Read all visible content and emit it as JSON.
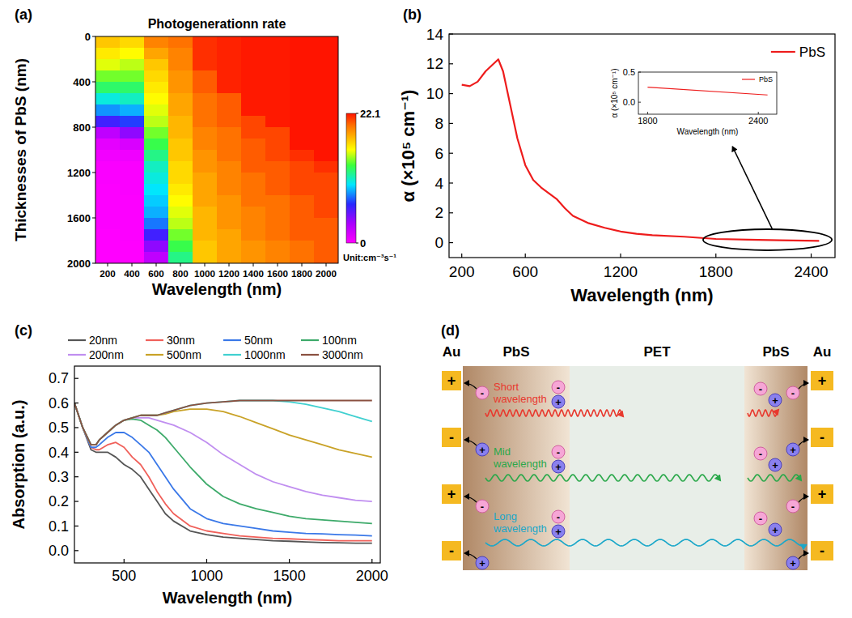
{
  "panel_labels": [
    "(a)",
    "(b)",
    "(c)",
    "(d)"
  ],
  "chart_data": [
    {
      "type": "heatmap",
      "title": "Photogenerationn rate",
      "x_label": "Wavelength (nm)",
      "y_label": "Thicknesses of  PbS (nm)",
      "x": [
        200,
        400,
        600,
        800,
        1000,
        1200,
        1400,
        1600,
        1800,
        2000
      ],
      "y": [
        50,
        150,
        250,
        350,
        450,
        550,
        650,
        750,
        850,
        950,
        1050,
        1150,
        1250,
        1350,
        1450,
        1550,
        1650,
        1750,
        1850,
        1950
      ],
      "xlim": [
        100,
        2100
      ],
      "ylim": [
        2000,
        0
      ],
      "xticks": [
        200,
        400,
        600,
        800,
        1000,
        1200,
        1400,
        1600,
        1800,
        2000
      ],
      "yticks": [
        0,
        400,
        800,
        1200,
        1600,
        2000
      ],
      "cells": [
        [
          17.5,
          17,
          19.5,
          20,
          21.5,
          21.8,
          22,
          22,
          22.1,
          22.1
        ],
        [
          16.5,
          16,
          18.5,
          19.5,
          21.5,
          21.8,
          22,
          22,
          22.1,
          22.1
        ],
        [
          15.5,
          15,
          17.5,
          19.5,
          21.5,
          21.8,
          22,
          22,
          22.1,
          22.1
        ],
        [
          14,
          14,
          17,
          19,
          20.5,
          21.8,
          22,
          22,
          22.1,
          22.1
        ],
        [
          12.5,
          12.5,
          16.5,
          19,
          20.5,
          21.8,
          22,
          22,
          22.1,
          22.1
        ],
        [
          10.5,
          11,
          16,
          18.5,
          20,
          20.5,
          22,
          22,
          22.1,
          22.1
        ],
        [
          8.5,
          9,
          15.5,
          18.5,
          20,
          20.5,
          22,
          22,
          22.1,
          22.1
        ],
        [
          6,
          7,
          15,
          18,
          20,
          20.5,
          21,
          22,
          22.1,
          22.1
        ],
        [
          2.5,
          4,
          14,
          18,
          19.5,
          20,
          21,
          21,
          22.1,
          22.1
        ],
        [
          1,
          1.5,
          13,
          17.5,
          19.5,
          20,
          20.5,
          21,
          22.1,
          22.1
        ],
        [
          0.5,
          0.6,
          12,
          17.5,
          19,
          20,
          20.5,
          21,
          21.5,
          22.1
        ],
        [
          0.2,
          0.2,
          11,
          17,
          19,
          19.5,
          20.5,
          20.5,
          21,
          21.5
        ],
        [
          0.2,
          0.2,
          10.5,
          17,
          18.5,
          19.5,
          20,
          20.5,
          21,
          21
        ],
        [
          0.1,
          0.2,
          10,
          16.5,
          18.5,
          19.5,
          20,
          20.5,
          21,
          21
        ],
        [
          0.1,
          0.1,
          9.5,
          16,
          18.5,
          19,
          20,
          20,
          20.5,
          21
        ],
        [
          0.1,
          0.1,
          9,
          15.5,
          18,
          19,
          19.5,
          20,
          20.5,
          21
        ],
        [
          0.1,
          0.1,
          8,
          15,
          18,
          19,
          19.5,
          20,
          20.5,
          20.5
        ],
        [
          0,
          0.1,
          6,
          14,
          18,
          18.5,
          19.5,
          20,
          20.5,
          20.5
        ],
        [
          0,
          0,
          4,
          13,
          17.5,
          18.5,
          19,
          19.5,
          20,
          20.5
        ],
        [
          0,
          0,
          2.5,
          12,
          17.5,
          18.5,
          19,
          19.5,
          20,
          20.5
        ]
      ],
      "colorbar": {
        "range": [
          0,
          22.1
        ],
        "ticks": [
          0,
          22.1
        ],
        "label": "Unit:cm⁻³s⁻¹"
      }
    },
    {
      "type": "line",
      "x_label": "Wavelength (nm)",
      "y_label": "α (×10⁵ cm⁻¹)",
      "xlim": [
        120,
        2550
      ],
      "ylim": [
        -1,
        14
      ],
      "xticks": [
        200,
        600,
        1200,
        1800,
        2400
      ],
      "yticks": [
        0,
        2,
        4,
        6,
        8,
        10,
        12,
        14
      ],
      "grid": false,
      "legend": "top-right",
      "x": [
        200,
        250,
        300,
        350,
        400,
        430,
        460,
        500,
        550,
        600,
        650,
        700,
        750,
        800,
        850,
        900,
        1000,
        1100,
        1200,
        1300,
        1400,
        1600,
        1800,
        2000,
        2200,
        2450
      ],
      "series": [
        {
          "name": "PbS",
          "color": "#ee1c1c",
          "values": [
            10.6,
            10.5,
            10.8,
            11.5,
            12.0,
            12.3,
            11.5,
            9.5,
            7,
            5.2,
            4.2,
            3.7,
            3.3,
            2.9,
            2.3,
            1.8,
            1.3,
            1.0,
            0.75,
            0.6,
            0.5,
            0.4,
            0.25,
            0.2,
            0.16,
            0.12
          ]
        }
      ],
      "inset": {
        "type": "line",
        "x_label": "Wavelength (nm)",
        "y_label": "α (×10⁵ cm⁻¹)",
        "xlim": [
          1750,
          2500
        ],
        "ylim": [
          -0.2,
          0.5
        ],
        "xticks": [
          1800,
          2400
        ],
        "yticks": [
          {
            "value": 0,
            "label": "0.0"
          },
          {
            "value": 0.5,
            "label": "0.5"
          }
        ],
        "grid": false,
        "legend": "top-right",
        "x": [
          1800,
          2450
        ],
        "series": [
          {
            "name": "PbS",
            "color": "#ee1c1c",
            "values": [
              0.25,
              0.12
            ]
          }
        ]
      }
    },
    {
      "type": "line",
      "x_label": "Wavelength (nm)",
      "y_label": "Absorption (a.u.)",
      "xlim": [
        200,
        2050
      ],
      "ylim": [
        -0.05,
        0.75
      ],
      "xticks": [
        500,
        1000,
        1500,
        2000
      ],
      "yticks": [
        {
          "value": 0,
          "label": "0.0"
        },
        0.1,
        0.2,
        0.3,
        0.4,
        0.5,
        0.6,
        0.7
      ],
      "grid": false,
      "legend": "top",
      "x": [
        200,
        250,
        300,
        330,
        350,
        400,
        450,
        500,
        550,
        600,
        650,
        700,
        750,
        800,
        900,
        1000,
        1100,
        1200,
        1300,
        1400,
        1500,
        1600,
        1700,
        1800,
        1900,
        2000
      ],
      "series": [
        {
          "name": "20nm",
          "color": "#555555",
          "values": [
            0.6,
            0.5,
            0.41,
            0.4,
            0.4,
            0.4,
            0.38,
            0.35,
            0.33,
            0.3,
            0.25,
            0.2,
            0.15,
            0.12,
            0.08,
            0.065,
            0.055,
            0.05,
            0.045,
            0.04,
            0.038,
            0.035,
            0.033,
            0.032,
            0.03,
            0.03
          ]
        },
        {
          "name": "30nm",
          "color": "#f0605a",
          "values": [
            0.6,
            0.5,
            0.42,
            0.41,
            0.41,
            0.43,
            0.44,
            0.42,
            0.38,
            0.35,
            0.3,
            0.24,
            0.19,
            0.15,
            0.1,
            0.08,
            0.07,
            0.06,
            0.055,
            0.05,
            0.048,
            0.045,
            0.043,
            0.04,
            0.04,
            0.04
          ]
        },
        {
          "name": "50nm",
          "color": "#3a78e8",
          "values": [
            0.6,
            0.5,
            0.42,
            0.42,
            0.43,
            0.46,
            0.48,
            0.48,
            0.46,
            0.43,
            0.4,
            0.35,
            0.3,
            0.25,
            0.17,
            0.13,
            0.11,
            0.1,
            0.09,
            0.08,
            0.075,
            0.07,
            0.068,
            0.065,
            0.063,
            0.06
          ]
        },
        {
          "name": "100nm",
          "color": "#3daa6a",
          "values": [
            0.6,
            0.5,
            0.43,
            0.43,
            0.45,
            0.48,
            0.51,
            0.53,
            0.535,
            0.53,
            0.51,
            0.49,
            0.46,
            0.42,
            0.34,
            0.27,
            0.22,
            0.19,
            0.17,
            0.155,
            0.14,
            0.13,
            0.125,
            0.12,
            0.115,
            0.11
          ]
        },
        {
          "name": "200nm",
          "color": "#c08ef0",
          "values": [
            0.6,
            0.5,
            0.43,
            0.43,
            0.45,
            0.48,
            0.51,
            0.53,
            0.54,
            0.54,
            0.54,
            0.53,
            0.52,
            0.51,
            0.48,
            0.44,
            0.39,
            0.35,
            0.31,
            0.28,
            0.26,
            0.24,
            0.225,
            0.215,
            0.205,
            0.2
          ]
        },
        {
          "name": "500nm",
          "color": "#c9a227",
          "values": [
            0.6,
            0.5,
            0.43,
            0.43,
            0.45,
            0.48,
            0.51,
            0.53,
            0.54,
            0.55,
            0.55,
            0.55,
            0.555,
            0.565,
            0.575,
            0.575,
            0.565,
            0.545,
            0.52,
            0.495,
            0.47,
            0.45,
            0.43,
            0.41,
            0.395,
            0.38
          ]
        },
        {
          "name": "1000nm",
          "color": "#40d0d0",
          "values": [
            0.6,
            0.5,
            0.43,
            0.43,
            0.45,
            0.48,
            0.51,
            0.53,
            0.54,
            0.55,
            0.55,
            0.55,
            0.56,
            0.57,
            0.59,
            0.6,
            0.605,
            0.61,
            0.61,
            0.61,
            0.605,
            0.595,
            0.58,
            0.565,
            0.545,
            0.525
          ]
        },
        {
          "name": "3000nm",
          "color": "#8a5040",
          "values": [
            0.6,
            0.5,
            0.43,
            0.43,
            0.45,
            0.48,
            0.51,
            0.53,
            0.54,
            0.55,
            0.55,
            0.55,
            0.56,
            0.57,
            0.59,
            0.6,
            0.605,
            0.61,
            0.61,
            0.61,
            0.61,
            0.61,
            0.61,
            0.61,
            0.61,
            0.61
          ]
        }
      ]
    }
  ],
  "diagram": {
    "layers": [
      {
        "label": "Au"
      },
      {
        "label": "PbS"
      },
      {
        "label": "PET"
      },
      {
        "label": "PbS"
      },
      {
        "label": "Au"
      }
    ],
    "light": [
      {
        "label": "Short wavelength",
        "color": "#e8392e"
      },
      {
        "label": "Mid wavelength",
        "color": "#2aa84a"
      },
      {
        "label": "Long wavelength",
        "color": "#1aa7c9"
      }
    ],
    "electrode_signs": [
      "+",
      "-",
      "+",
      "-"
    ],
    "electron": "-",
    "hole": "+"
  }
}
